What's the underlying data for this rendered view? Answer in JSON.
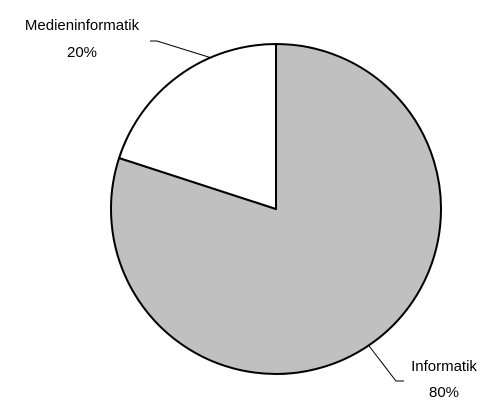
{
  "chart_data": {
    "type": "pie",
    "slices": [
      {
        "label": "Informatik",
        "value": 80,
        "percent_label": "80%",
        "color": "#c0c0c0"
      },
      {
        "label": "Medieninformatik",
        "value": 20,
        "percent_label": "20%",
        "color": "#ffffff"
      }
    ],
    "stroke_color": "#000000"
  }
}
